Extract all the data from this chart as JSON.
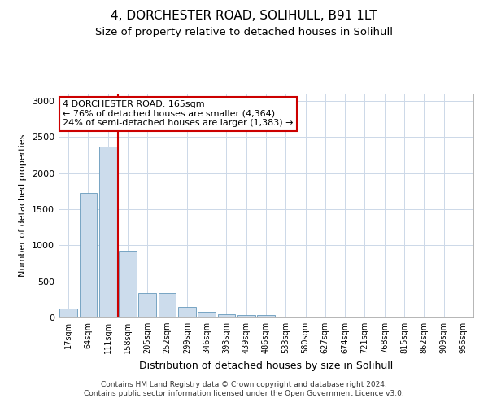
{
  "title1": "4, DORCHESTER ROAD, SOLIHULL, B91 1LT",
  "title2": "Size of property relative to detached houses in Solihull",
  "xlabel": "Distribution of detached houses by size in Solihull",
  "ylabel": "Number of detached properties",
  "categories": [
    "17sqm",
    "64sqm",
    "111sqm",
    "158sqm",
    "205sqm",
    "252sqm",
    "299sqm",
    "346sqm",
    "393sqm",
    "439sqm",
    "486sqm",
    "533sqm",
    "580sqm",
    "627sqm",
    "674sqm",
    "721sqm",
    "768sqm",
    "815sqm",
    "862sqm",
    "909sqm",
    "956sqm"
  ],
  "values": [
    120,
    1730,
    2370,
    920,
    340,
    340,
    150,
    80,
    50,
    35,
    30,
    5,
    5,
    0,
    0,
    0,
    0,
    0,
    0,
    0,
    0
  ],
  "bar_color": "#ccdcec",
  "bar_edge_color": "#6699bb",
  "annotation_line1": "4 DORCHESTER ROAD: 165sqm",
  "annotation_line2": "← 76% of detached houses are smaller (4,364)",
  "annotation_line3": "24% of semi-detached houses are larger (1,383) →",
  "annotation_box_color": "#ffffff",
  "annotation_box_edge": "#cc0000",
  "red_line_bar_index": 3,
  "ylim": [
    0,
    3100
  ],
  "yticks": [
    0,
    500,
    1000,
    1500,
    2000,
    2500,
    3000
  ],
  "footer1": "Contains HM Land Registry data © Crown copyright and database right 2024.",
  "footer2": "Contains public sector information licensed under the Open Government Licence v3.0.",
  "bg_color": "#ffffff",
  "grid_color": "#ccd8e8",
  "title1_fontsize": 11,
  "title2_fontsize": 9.5,
  "ylabel_fontsize": 8,
  "xlabel_fontsize": 9
}
